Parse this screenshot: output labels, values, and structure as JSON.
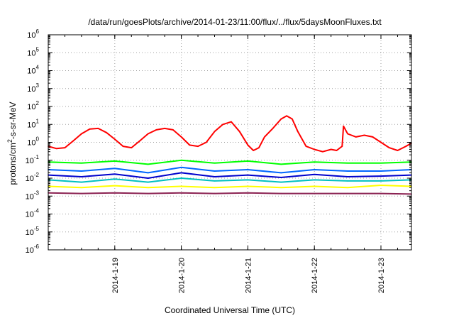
{
  "chart_data": {
    "type": "line",
    "title": "/data/run/goesPlots/archive/2014-01-23/11:00/flux/../flux/5daysMoonFluxes.txt",
    "xlabel": "Coordinated Universal Time (UTC)",
    "ylabel": {
      "pre": "protons/cm",
      "sup": "2",
      "post": "-s-sr-MeV"
    },
    "y_scale": "log",
    "ylim": [
      1e-06,
      1000000.0
    ],
    "y_ticks": [
      {
        "value": 1e-06,
        "base": "10",
        "exp": "-6"
      },
      {
        "value": 1e-05,
        "base": "10",
        "exp": "-5"
      },
      {
        "value": 0.0001,
        "base": "10",
        "exp": "-4"
      },
      {
        "value": 0.001,
        "base": "10",
        "exp": "-3"
      },
      {
        "value": 0.01,
        "base": "10",
        "exp": "-2"
      },
      {
        "value": 0.1,
        "base": "10",
        "exp": "-1"
      },
      {
        "value": 1,
        "base": "10",
        "exp": "0"
      },
      {
        "value": 10,
        "base": "10",
        "exp": "1"
      },
      {
        "value": 100,
        "base": "10",
        "exp": "2"
      },
      {
        "value": 1000,
        "base": "10",
        "exp": "3"
      },
      {
        "value": 10000,
        "base": "10",
        "exp": "4"
      },
      {
        "value": 100000,
        "base": "10",
        "exp": "5"
      },
      {
        "value": 1000000,
        "base": "10",
        "exp": "6"
      }
    ],
    "xlim": [
      "2014-01-18 00:00",
      "2014-01-23 11:00"
    ],
    "x_ticks": [
      "2014-1-19",
      "2014-1-20",
      "2014-1-21",
      "2014-1-22",
      "2014-1-23"
    ],
    "grid": true,
    "series": [
      {
        "color": "#ff0000",
        "x": [
          "2014-01-18 00:00",
          "2014-01-18 03:00",
          "2014-01-18 06:00",
          "2014-01-18 09:00",
          "2014-01-18 12:00",
          "2014-01-18 15:00",
          "2014-01-18 18:00",
          "2014-01-18 21:00",
          "2014-01-19 00:00",
          "2014-01-19 03:00",
          "2014-01-19 06:00",
          "2014-01-19 09:00",
          "2014-01-19 12:00",
          "2014-01-19 15:00",
          "2014-01-19 18:00",
          "2014-01-19 21:00",
          "2014-01-20 00:00",
          "2014-01-20 03:00",
          "2014-01-20 06:00",
          "2014-01-20 09:00",
          "2014-01-20 12:00",
          "2014-01-20 15:00",
          "2014-01-20 18:00",
          "2014-01-20 21:00",
          "2014-01-21 00:00",
          "2014-01-21 02:00",
          "2014-01-21 04:00",
          "2014-01-21 06:00",
          "2014-01-21 09:00",
          "2014-01-21 12:00",
          "2014-01-21 14:00",
          "2014-01-21 16:00",
          "2014-01-21 18:00",
          "2014-01-21 21:00",
          "2014-01-22 00:00",
          "2014-01-22 03:00",
          "2014-01-22 06:00",
          "2014-01-22 08:00",
          "2014-01-22 10:00",
          "2014-01-22 10:30",
          "2014-01-22 12:00",
          "2014-01-22 15:00",
          "2014-01-22 18:00",
          "2014-01-22 21:00",
          "2014-01-23 00:00",
          "2014-01-23 03:00",
          "2014-01-23 06:00",
          "2014-01-23 09:00",
          "2014-01-23 11:00"
        ],
        "values": [
          0.6,
          0.45,
          0.5,
          1.2,
          3,
          5.5,
          6,
          3.5,
          1.5,
          0.6,
          0.5,
          1.2,
          3,
          5,
          6,
          5,
          2,
          0.7,
          0.6,
          1,
          4,
          10,
          14,
          4,
          0.7,
          0.35,
          0.5,
          2,
          6,
          20,
          30,
          20,
          4,
          0.6,
          0.4,
          0.3,
          0.4,
          0.35,
          0.6,
          8,
          3,
          2,
          2.5,
          2,
          1,
          0.5,
          0.35,
          0.6,
          0.9
        ]
      },
      {
        "color": "#00ff00",
        "x": [
          "2014-01-18 00:00",
          "2014-01-18 12:00",
          "2014-01-19 00:00",
          "2014-01-19 12:00",
          "2014-01-20 00:00",
          "2014-01-20 12:00",
          "2014-01-21 00:00",
          "2014-01-21 12:00",
          "2014-01-22 00:00",
          "2014-01-22 12:00",
          "2014-01-23 00:00",
          "2014-01-23 11:00"
        ],
        "values": [
          0.08,
          0.07,
          0.09,
          0.06,
          0.1,
          0.07,
          0.09,
          0.06,
          0.08,
          0.07,
          0.07,
          0.08
        ]
      },
      {
        "color": "#0066ff",
        "x": [
          "2014-01-18 00:00",
          "2014-01-18 12:00",
          "2014-01-19 00:00",
          "2014-01-19 12:00",
          "2014-01-20 00:00",
          "2014-01-20 12:00",
          "2014-01-21 00:00",
          "2014-01-21 12:00",
          "2014-01-22 00:00",
          "2014-01-22 12:00",
          "2014-01-23 00:00",
          "2014-01-23 11:00"
        ],
        "values": [
          0.03,
          0.025,
          0.035,
          0.02,
          0.04,
          0.025,
          0.03,
          0.02,
          0.03,
          0.025,
          0.025,
          0.03
        ]
      },
      {
        "color": "#0000cc",
        "x": [
          "2014-01-18 00:00",
          "2014-01-18 12:00",
          "2014-01-19 00:00",
          "2014-01-19 12:00",
          "2014-01-20 00:00",
          "2014-01-20 12:00",
          "2014-01-21 00:00",
          "2014-01-21 12:00",
          "2014-01-22 00:00",
          "2014-01-22 12:00",
          "2014-01-23 00:00",
          "2014-01-23 11:00"
        ],
        "values": [
          0.015,
          0.012,
          0.017,
          0.01,
          0.02,
          0.012,
          0.015,
          0.011,
          0.016,
          0.012,
          0.013,
          0.015
        ]
      },
      {
        "color": "#00c0c0",
        "x": [
          "2014-01-18 00:00",
          "2014-01-18 12:00",
          "2014-01-19 00:00",
          "2014-01-19 12:00",
          "2014-01-20 00:00",
          "2014-01-20 12:00",
          "2014-01-21 00:00",
          "2014-01-21 12:00",
          "2014-01-22 00:00",
          "2014-01-22 12:00",
          "2014-01-23 00:00",
          "2014-01-23 11:00"
        ],
        "values": [
          0.008,
          0.006,
          0.009,
          0.006,
          0.01,
          0.007,
          0.008,
          0.006,
          0.008,
          0.007,
          0.007,
          0.008
        ]
      },
      {
        "color": "#ffff00",
        "x": [
          "2014-01-18 00:00",
          "2014-01-18 12:00",
          "2014-01-19 00:00",
          "2014-01-19 12:00",
          "2014-01-20 00:00",
          "2014-01-20 12:00",
          "2014-01-21 00:00",
          "2014-01-21 12:00",
          "2014-01-22 00:00",
          "2014-01-22 12:00",
          "2014-01-23 00:00",
          "2014-01-23 11:00"
        ],
        "values": [
          0.0035,
          0.003,
          0.0038,
          0.003,
          0.0035,
          0.003,
          0.0035,
          0.003,
          0.0035,
          0.003,
          0.004,
          0.0035
        ]
      },
      {
        "color": "#8b2252",
        "x": [
          "2014-01-18 00:00",
          "2014-01-18 12:00",
          "2014-01-19 00:00",
          "2014-01-19 12:00",
          "2014-01-20 00:00",
          "2014-01-20 12:00",
          "2014-01-21 00:00",
          "2014-01-21 12:00",
          "2014-01-22 00:00",
          "2014-01-22 12:00",
          "2014-01-23 00:00",
          "2014-01-23 11:00"
        ],
        "values": [
          0.0015,
          0.0014,
          0.0015,
          0.0014,
          0.0015,
          0.0014,
          0.0015,
          0.0014,
          0.0014,
          0.0014,
          0.0014,
          0.0013
        ]
      }
    ]
  }
}
